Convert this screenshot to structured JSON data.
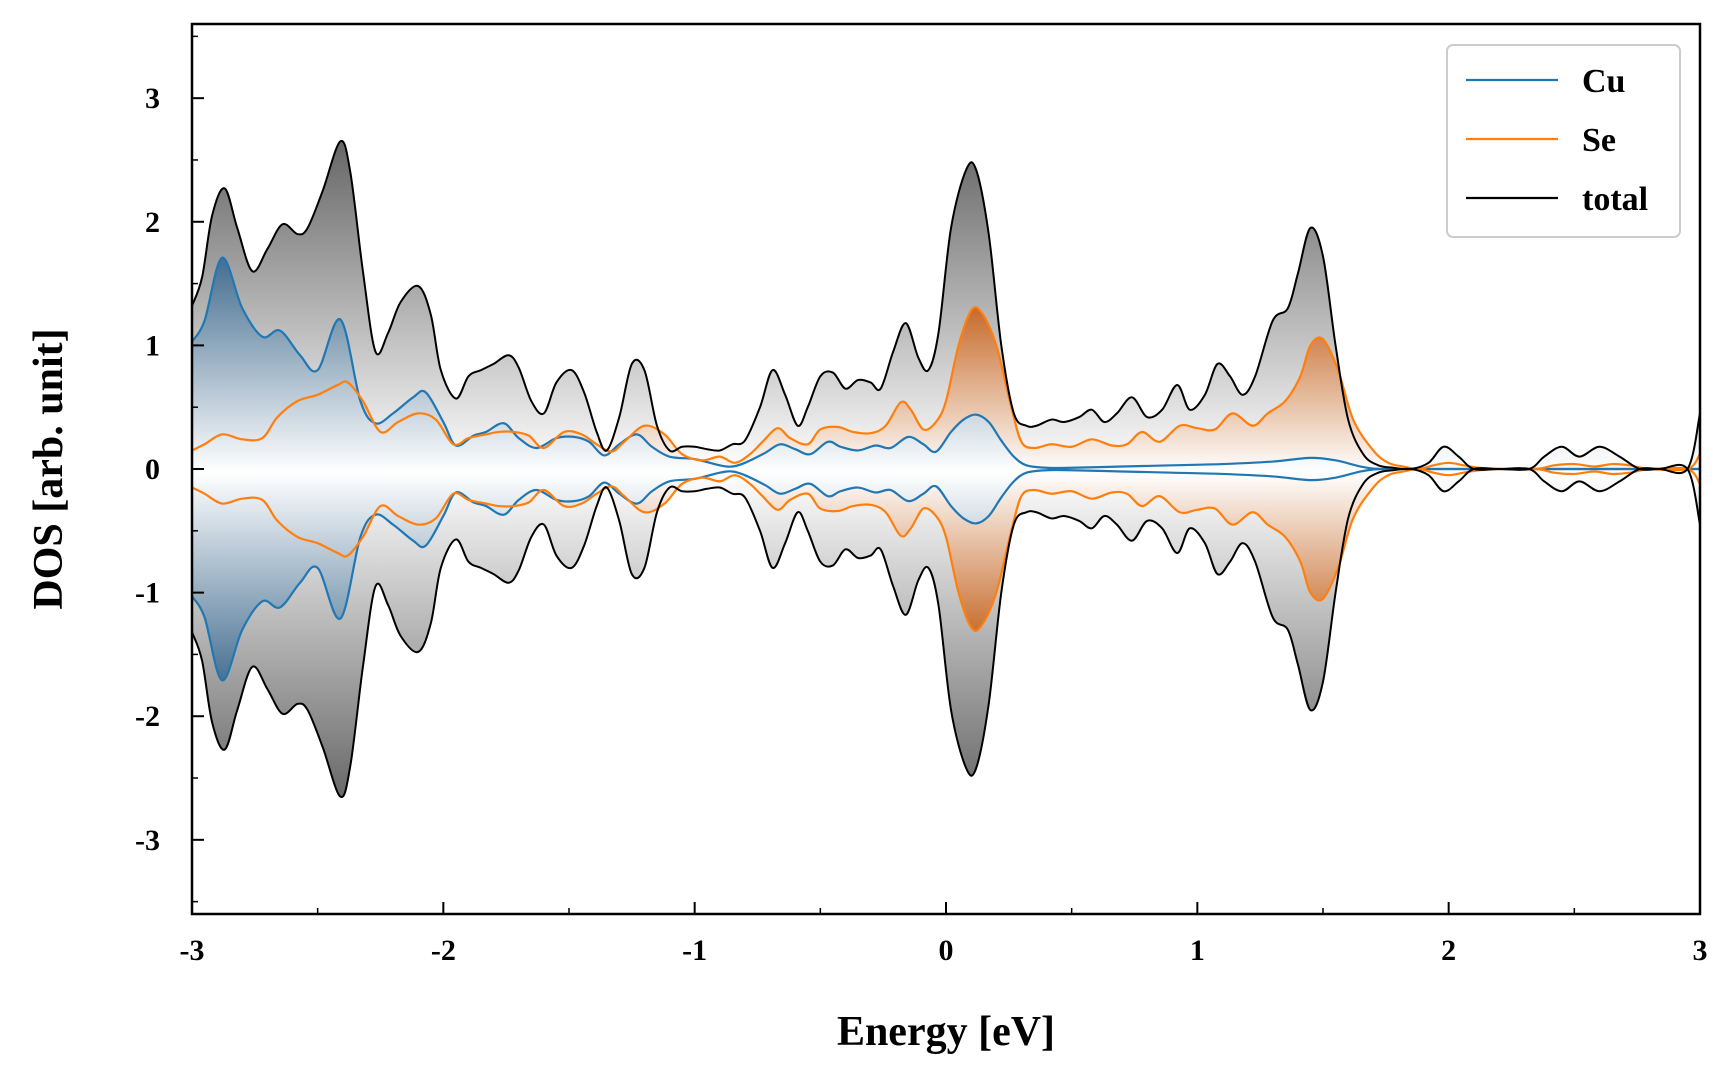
{
  "chart_data": {
    "type": "line",
    "title": "",
    "xlabel": "Energy [eV]",
    "ylabel": "DOS [arb. unit]",
    "xlim": [
      -3,
      3
    ],
    "ylim": [
      -3.6,
      3.6
    ],
    "xticks": [
      "-3",
      "-2",
      "-1",
      "0",
      "1",
      "2",
      "3"
    ],
    "yticks": [
      "-3",
      "-2",
      "-1",
      "0",
      "1",
      "2",
      "3"
    ],
    "grid": false,
    "legend_position": "top-right",
    "mirrored": true,
    "series": [
      {
        "name": "Cu",
        "color": "#1f77b4",
        "x": [
          -3.0,
          -2.95,
          -2.88,
          -2.8,
          -2.72,
          -2.65,
          -2.57,
          -2.5,
          -2.41,
          -2.33,
          -2.27,
          -2.2,
          -2.12,
          -2.07,
          -2.0,
          -1.95,
          -1.88,
          -1.83,
          -1.76,
          -1.7,
          -1.63,
          -1.55,
          -1.48,
          -1.42,
          -1.36,
          -1.3,
          -1.23,
          -1.17,
          -1.1,
          -1.0,
          -0.9,
          -0.85,
          -0.8,
          -0.72,
          -0.66,
          -0.6,
          -0.54,
          -0.47,
          -0.42,
          -0.35,
          -0.28,
          -0.22,
          -0.15,
          -0.09,
          -0.04,
          0.02,
          0.07,
          0.12,
          0.17,
          0.22,
          0.27,
          0.32,
          0.4,
          0.5,
          0.7,
          0.9,
          1.1,
          1.3,
          1.45,
          1.55,
          1.65,
          1.72,
          1.8,
          3.0
        ],
        "values": [
          1.03,
          1.2,
          1.71,
          1.3,
          1.07,
          1.12,
          0.92,
          0.8,
          1.21,
          0.55,
          0.37,
          0.45,
          0.58,
          0.62,
          0.38,
          0.19,
          0.27,
          0.3,
          0.37,
          0.25,
          0.17,
          0.25,
          0.26,
          0.22,
          0.11,
          0.2,
          0.28,
          0.18,
          0.1,
          0.08,
          0.03,
          0.02,
          0.05,
          0.13,
          0.2,
          0.16,
          0.12,
          0.22,
          0.18,
          0.15,
          0.19,
          0.17,
          0.26,
          0.2,
          0.14,
          0.3,
          0.4,
          0.44,
          0.38,
          0.23,
          0.1,
          0.03,
          0.01,
          0.01,
          0.02,
          0.03,
          0.04,
          0.06,
          0.09,
          0.07,
          0.02,
          0.0,
          0.0,
          0.0
        ]
      },
      {
        "name": "Se",
        "color": "#ff7f0e",
        "x": [
          -3.0,
          -2.95,
          -2.88,
          -2.8,
          -2.72,
          -2.66,
          -2.58,
          -2.5,
          -2.42,
          -2.38,
          -2.32,
          -2.25,
          -2.18,
          -2.1,
          -2.03,
          -1.96,
          -1.9,
          -1.83,
          -1.78,
          -1.72,
          -1.66,
          -1.6,
          -1.52,
          -1.45,
          -1.39,
          -1.33,
          -1.28,
          -1.2,
          -1.12,
          -1.05,
          -0.97,
          -0.9,
          -0.84,
          -0.78,
          -0.73,
          -0.67,
          -0.62,
          -0.55,
          -0.5,
          -0.43,
          -0.37,
          -0.3,
          -0.24,
          -0.18,
          -0.14,
          -0.09,
          -0.04,
          0.0,
          0.05,
          0.1,
          0.14,
          0.2,
          0.26,
          0.3,
          0.35,
          0.42,
          0.5,
          0.58,
          0.66,
          0.72,
          0.78,
          0.85,
          0.93,
          1.0,
          1.07,
          1.14,
          1.22,
          1.28,
          1.35,
          1.41,
          1.45,
          1.5,
          1.56,
          1.62,
          1.7,
          1.76,
          1.82,
          1.88,
          1.94,
          2.0,
          2.06,
          2.12,
          2.2,
          2.35,
          2.42,
          2.5,
          2.58,
          2.65,
          2.72,
          2.8,
          2.95,
          3.0
        ],
        "values": [
          0.15,
          0.2,
          0.28,
          0.24,
          0.25,
          0.42,
          0.55,
          0.6,
          0.68,
          0.7,
          0.55,
          0.3,
          0.38,
          0.45,
          0.4,
          0.2,
          0.25,
          0.28,
          0.3,
          0.3,
          0.27,
          0.17,
          0.3,
          0.28,
          0.2,
          0.14,
          0.22,
          0.35,
          0.28,
          0.12,
          0.07,
          0.1,
          0.05,
          0.12,
          0.22,
          0.33,
          0.25,
          0.2,
          0.32,
          0.34,
          0.3,
          0.29,
          0.35,
          0.54,
          0.48,
          0.32,
          0.38,
          0.55,
          1.0,
          1.28,
          1.27,
          1.0,
          0.5,
          0.22,
          0.17,
          0.2,
          0.18,
          0.24,
          0.19,
          0.2,
          0.3,
          0.22,
          0.35,
          0.33,
          0.32,
          0.45,
          0.35,
          0.45,
          0.55,
          0.75,
          1.0,
          1.05,
          0.8,
          0.4,
          0.15,
          0.05,
          0.02,
          0.0,
          0.03,
          0.05,
          0.03,
          0.01,
          0.0,
          0.0,
          0.03,
          0.04,
          0.02,
          0.04,
          0.03,
          0.0,
          0.0,
          0.12
        ]
      },
      {
        "name": "total",
        "color": "#000000",
        "x": [
          -3.0,
          -2.96,
          -2.92,
          -2.87,
          -2.82,
          -2.76,
          -2.7,
          -2.64,
          -2.58,
          -2.54,
          -2.48,
          -2.41,
          -2.37,
          -2.32,
          -2.27,
          -2.22,
          -2.17,
          -2.1,
          -2.05,
          -2.01,
          -1.95,
          -1.9,
          -1.85,
          -1.8,
          -1.74,
          -1.7,
          -1.65,
          -1.6,
          -1.55,
          -1.49,
          -1.44,
          -1.39,
          -1.35,
          -1.3,
          -1.25,
          -1.2,
          -1.15,
          -1.1,
          -1.05,
          -1.0,
          -0.95,
          -0.9,
          -0.85,
          -0.8,
          -0.74,
          -0.69,
          -0.64,
          -0.59,
          -0.55,
          -0.5,
          -0.45,
          -0.4,
          -0.35,
          -0.3,
          -0.26,
          -0.21,
          -0.16,
          -0.11,
          -0.07,
          -0.03,
          0.02,
          0.08,
          0.12,
          0.17,
          0.22,
          0.27,
          0.32,
          0.36,
          0.42,
          0.47,
          0.53,
          0.58,
          0.63,
          0.68,
          0.74,
          0.8,
          0.86,
          0.92,
          0.97,
          1.03,
          1.08,
          1.13,
          1.18,
          1.23,
          1.3,
          1.36,
          1.4,
          1.45,
          1.5,
          1.55,
          1.6,
          1.66,
          1.72,
          1.78,
          1.85,
          1.92,
          1.98,
          2.04,
          2.1,
          2.2,
          2.32,
          2.38,
          2.45,
          2.52,
          2.6,
          2.68,
          2.76,
          2.84,
          2.95,
          3.0
        ],
        "values": [
          1.32,
          1.55,
          2.05,
          2.27,
          1.95,
          1.6,
          1.78,
          1.98,
          1.9,
          1.95,
          2.25,
          2.65,
          2.4,
          1.6,
          0.95,
          1.1,
          1.35,
          1.48,
          1.25,
          0.8,
          0.57,
          0.75,
          0.8,
          0.85,
          0.92,
          0.82,
          0.55,
          0.45,
          0.7,
          0.8,
          0.62,
          0.3,
          0.15,
          0.42,
          0.85,
          0.8,
          0.35,
          0.15,
          0.18,
          0.18,
          0.16,
          0.15,
          0.2,
          0.23,
          0.5,
          0.8,
          0.6,
          0.35,
          0.5,
          0.75,
          0.78,
          0.65,
          0.72,
          0.7,
          0.65,
          0.95,
          1.18,
          0.9,
          0.8,
          1.1,
          1.95,
          2.42,
          2.42,
          1.9,
          1.0,
          0.45,
          0.35,
          0.35,
          0.4,
          0.38,
          0.42,
          0.48,
          0.38,
          0.45,
          0.58,
          0.42,
          0.48,
          0.68,
          0.48,
          0.6,
          0.85,
          0.75,
          0.6,
          0.75,
          1.2,
          1.3,
          1.58,
          1.95,
          1.72,
          1.0,
          0.4,
          0.12,
          0.03,
          0.01,
          0.0,
          0.05,
          0.18,
          0.1,
          0.0,
          0.0,
          0.0,
          0.1,
          0.18,
          0.1,
          0.18,
          0.1,
          0.0,
          0.0,
          0.0,
          0.45
        ]
      }
    ]
  }
}
